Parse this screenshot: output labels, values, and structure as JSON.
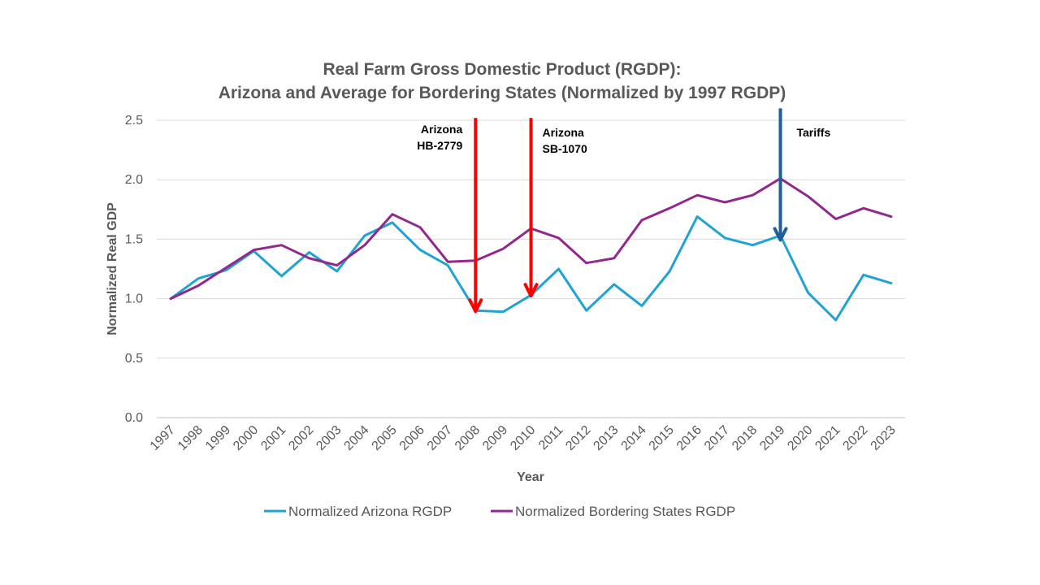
{
  "chart_data": {
    "type": "line",
    "title_lines": [
      "Real Farm Gross Domestic Product (RGDP):",
      "Arizona and Average for Bordering States (Normalized by 1997 RGDP)"
    ],
    "xlabel": "Year",
    "ylabel": "Normalized Real GDP",
    "ylim": [
      0,
      2.5
    ],
    "yticks": [
      "0.0",
      "0.5",
      "1.0",
      "1.5",
      "2.0",
      "2.5"
    ],
    "grid": true,
    "legend_position": "bottom",
    "categories": [
      "1997",
      "1998",
      "1999",
      "2000",
      "2001",
      "2002",
      "2003",
      "2004",
      "2005",
      "2006",
      "2007",
      "2008",
      "2009",
      "2010",
      "2011",
      "2012",
      "2013",
      "2014",
      "2015",
      "2016",
      "2017",
      "2018",
      "2019",
      "2020",
      "2021",
      "2022",
      "2023"
    ],
    "series": [
      {
        "name": "Normalized Arizona RGDP",
        "color": "#1fa3d4",
        "values": [
          1.0,
          1.17,
          1.24,
          1.4,
          1.19,
          1.39,
          1.23,
          1.53,
          1.64,
          1.41,
          1.28,
          0.9,
          0.89,
          1.03,
          1.25,
          0.9,
          1.12,
          0.94,
          1.23,
          1.69,
          1.51,
          1.45,
          1.53,
          1.05,
          0.82,
          1.2,
          1.13
        ]
      },
      {
        "name": "Normalized Bordering States RGDP",
        "color": "#92278f",
        "values": [
          1.0,
          1.11,
          1.26,
          1.41,
          1.45,
          1.34,
          1.28,
          1.45,
          1.71,
          1.6,
          1.31,
          1.32,
          1.42,
          1.59,
          1.51,
          1.3,
          1.34,
          1.66,
          1.76,
          1.87,
          1.81,
          1.87,
          2.01,
          1.86,
          1.67,
          1.76,
          1.69
        ]
      }
    ],
    "annotations": [
      {
        "lines": [
          "Arizona",
          "HB-2779"
        ],
        "category": "2008",
        "arrow_from_y": 2.52,
        "arrow_to_y": 0.9,
        "color": "#ff0000"
      },
      {
        "lines": [
          "Arizona",
          "SB-1070"
        ],
        "category": "2010",
        "arrow_from_y": 2.52,
        "arrow_to_y": 1.03,
        "color": "#ff0000"
      },
      {
        "lines": [
          "Tariffs"
        ],
        "category": "2019",
        "arrow_from_y": 2.6,
        "arrow_to_y": 1.5,
        "color": "#1f5f99"
      }
    ]
  }
}
